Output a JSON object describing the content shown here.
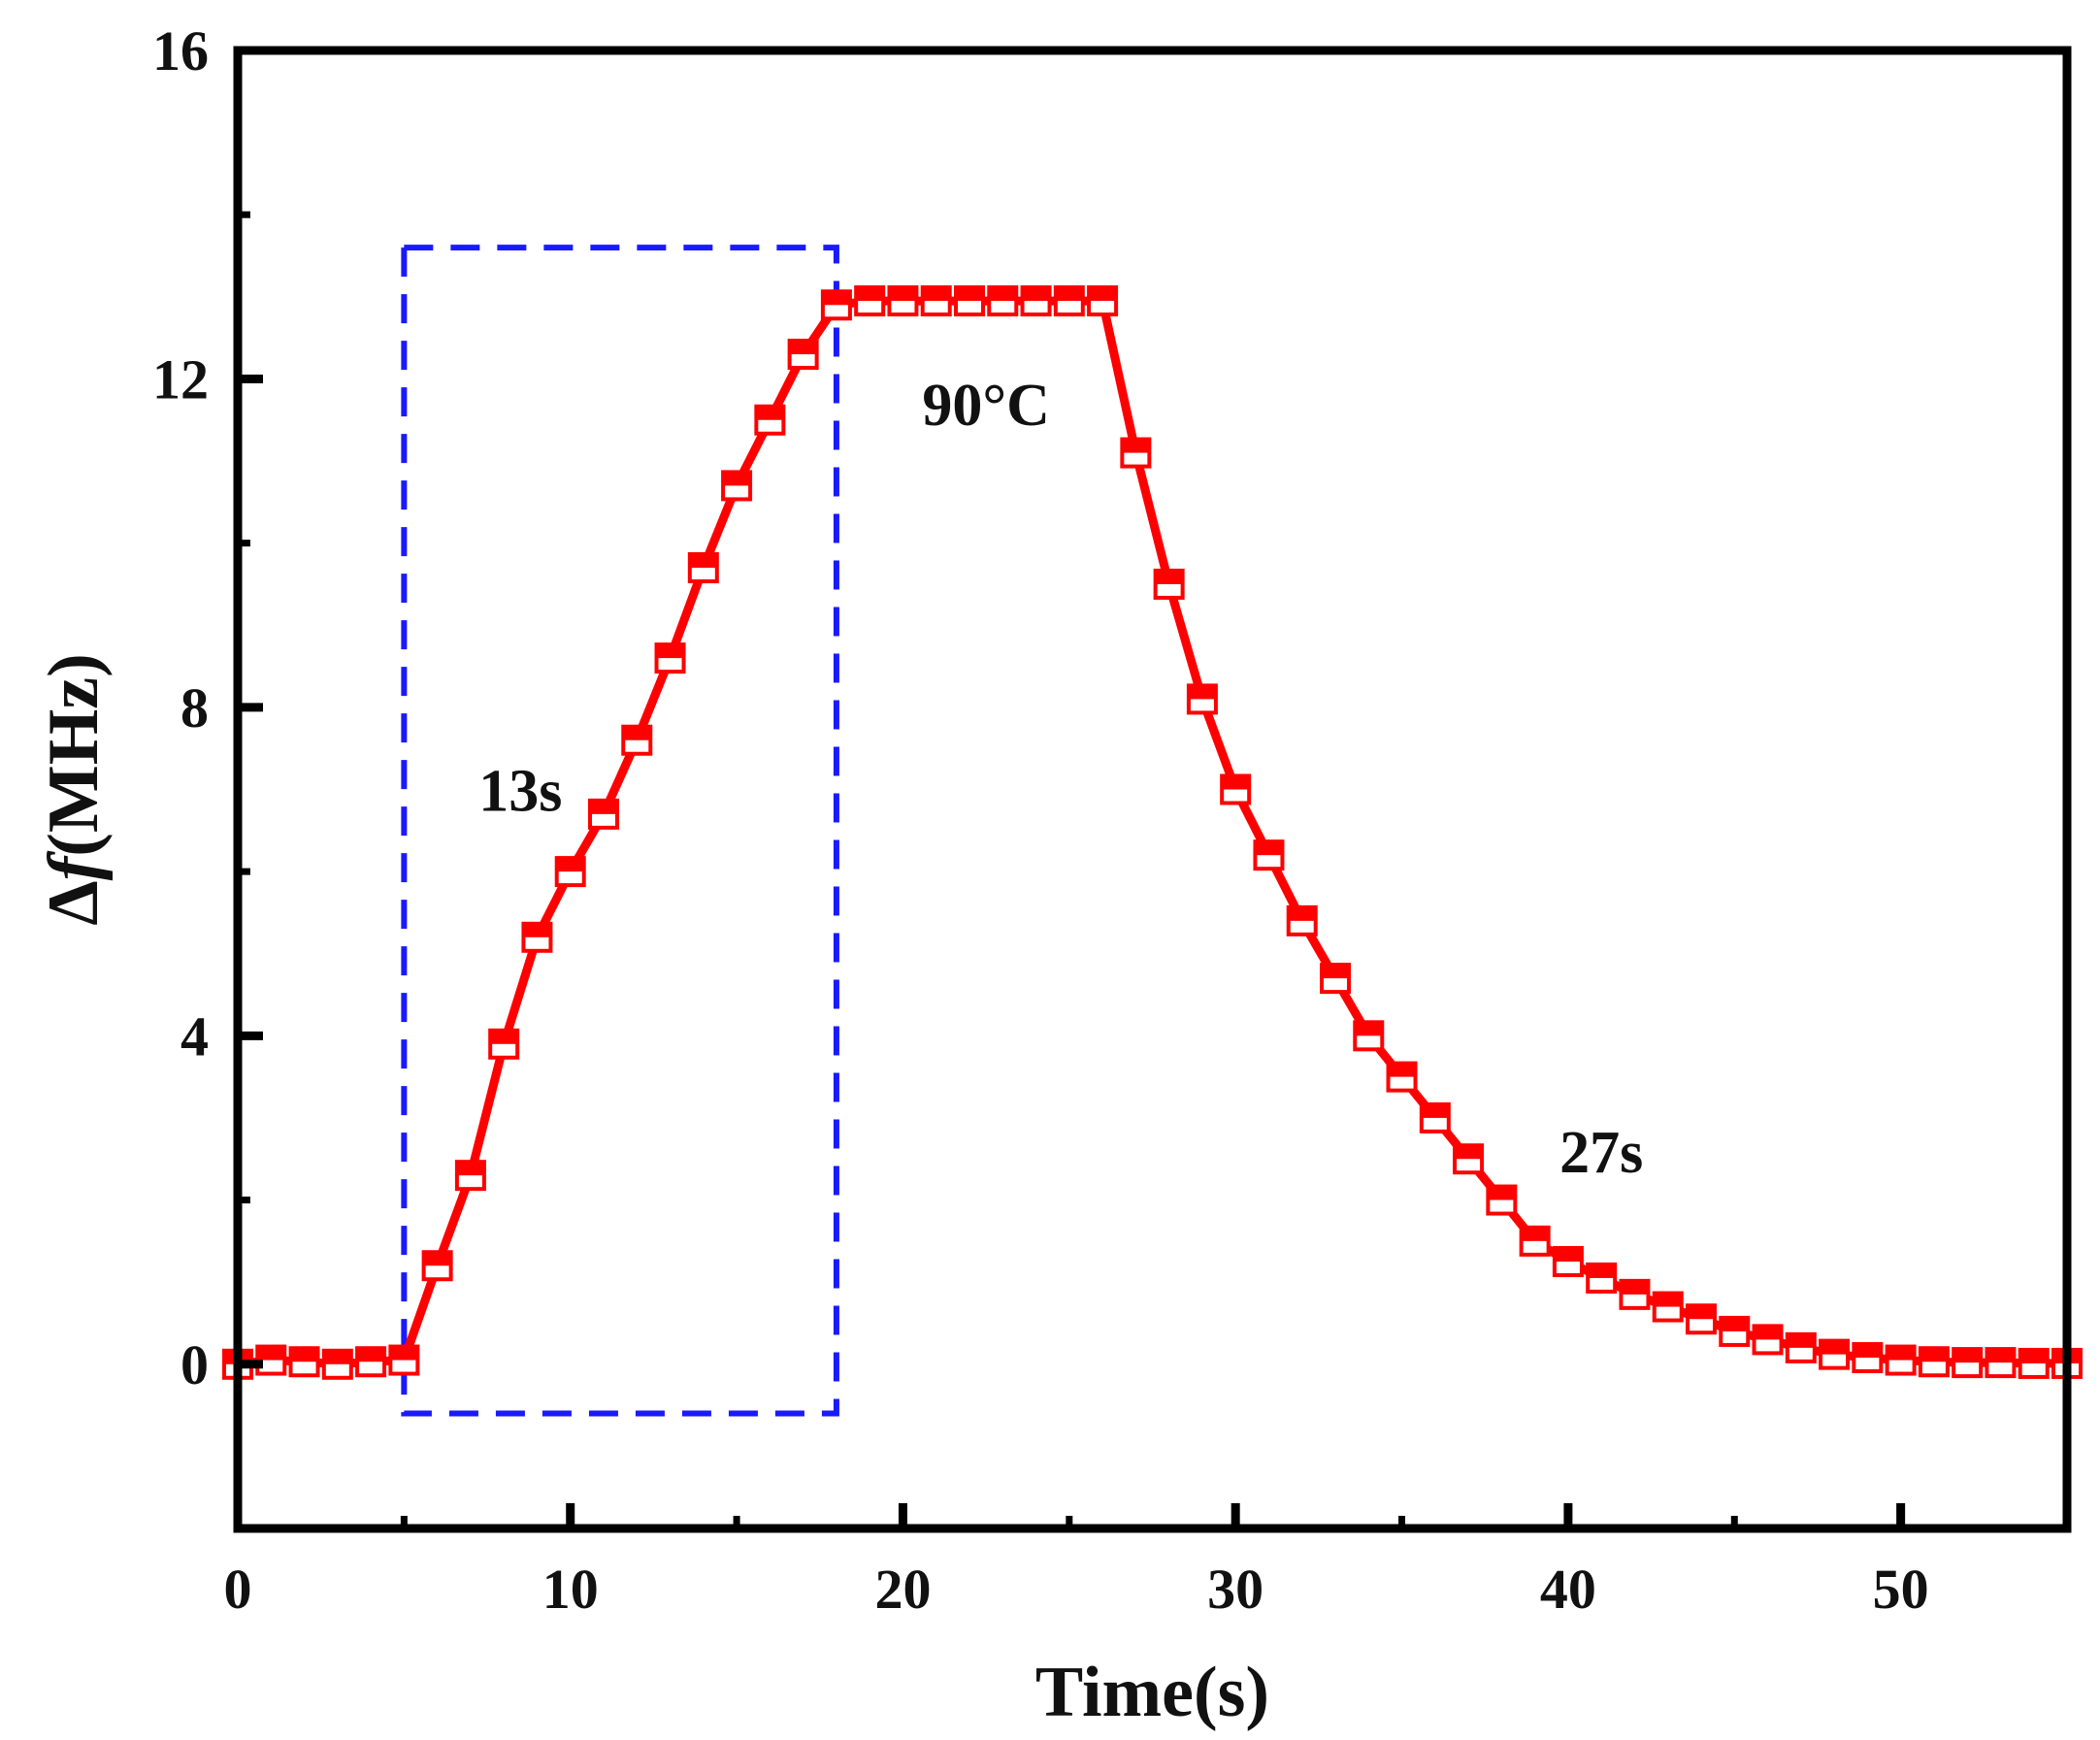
{
  "chart_data": {
    "type": "line",
    "title": "",
    "xlabel": "Time(s)",
    "ylabel_prefix": "Δ",
    "ylabel_var": "f",
    "ylabel_unit": "(MHz)",
    "xlim": [
      0,
      55
    ],
    "ylim": [
      -2,
      16
    ],
    "xticks": [
      0,
      10,
      20,
      30,
      40,
      50
    ],
    "yticks": [
      0,
      4,
      8,
      12,
      16
    ],
    "xtick_labels": [
      "0",
      "10",
      "20",
      "30",
      "40",
      "50"
    ],
    "ytick_labels": [
      "0",
      "4",
      "8",
      "12",
      "16"
    ],
    "grid": false,
    "series": [
      {
        "name": "Δf",
        "color": "#ff0000",
        "marker": "half-filled-square",
        "x": [
          0,
          1,
          2,
          3,
          4,
          5,
          6,
          7,
          8,
          9,
          10,
          11,
          12,
          13,
          14,
          15,
          16,
          17,
          18,
          19,
          20,
          21,
          22,
          23,
          24,
          25,
          26,
          27,
          28,
          29,
          30,
          31,
          32,
          33,
          34,
          35,
          36,
          37,
          38,
          39,
          40,
          41,
          42,
          43,
          44,
          45,
          46,
          47,
          48,
          49,
          50,
          51,
          52,
          53,
          54,
          55
        ],
        "y": [
          0.0,
          0.05,
          0.03,
          0.0,
          0.03,
          0.05,
          1.2,
          2.3,
          3.9,
          5.2,
          6.0,
          6.7,
          7.6,
          8.6,
          9.7,
          10.7,
          11.5,
          12.3,
          12.9,
          12.95,
          12.95,
          12.95,
          12.95,
          12.95,
          12.95,
          12.95,
          12.95,
          11.1,
          9.5,
          8.1,
          7.0,
          6.2,
          5.4,
          4.7,
          4.0,
          3.5,
          3.0,
          2.5,
          2.0,
          1.5,
          1.25,
          1.05,
          0.85,
          0.7,
          0.55,
          0.4,
          0.3,
          0.2,
          0.12,
          0.08,
          0.05,
          0.03,
          0.02,
          0.02,
          0.01,
          0.01
        ]
      }
    ],
    "highlight_box": {
      "x0": 5,
      "x1": 18,
      "y0": -0.6,
      "y1": 13.6,
      "color": "#1a1aff",
      "style": "dashed"
    },
    "annotations": [
      {
        "text": "13s",
        "x": 8.5,
        "y": 7.0
      },
      {
        "text": "90°C",
        "x": 22.5,
        "y": 11.7
      },
      {
        "text": "27s",
        "x": 41,
        "y": 2.6
      }
    ]
  }
}
